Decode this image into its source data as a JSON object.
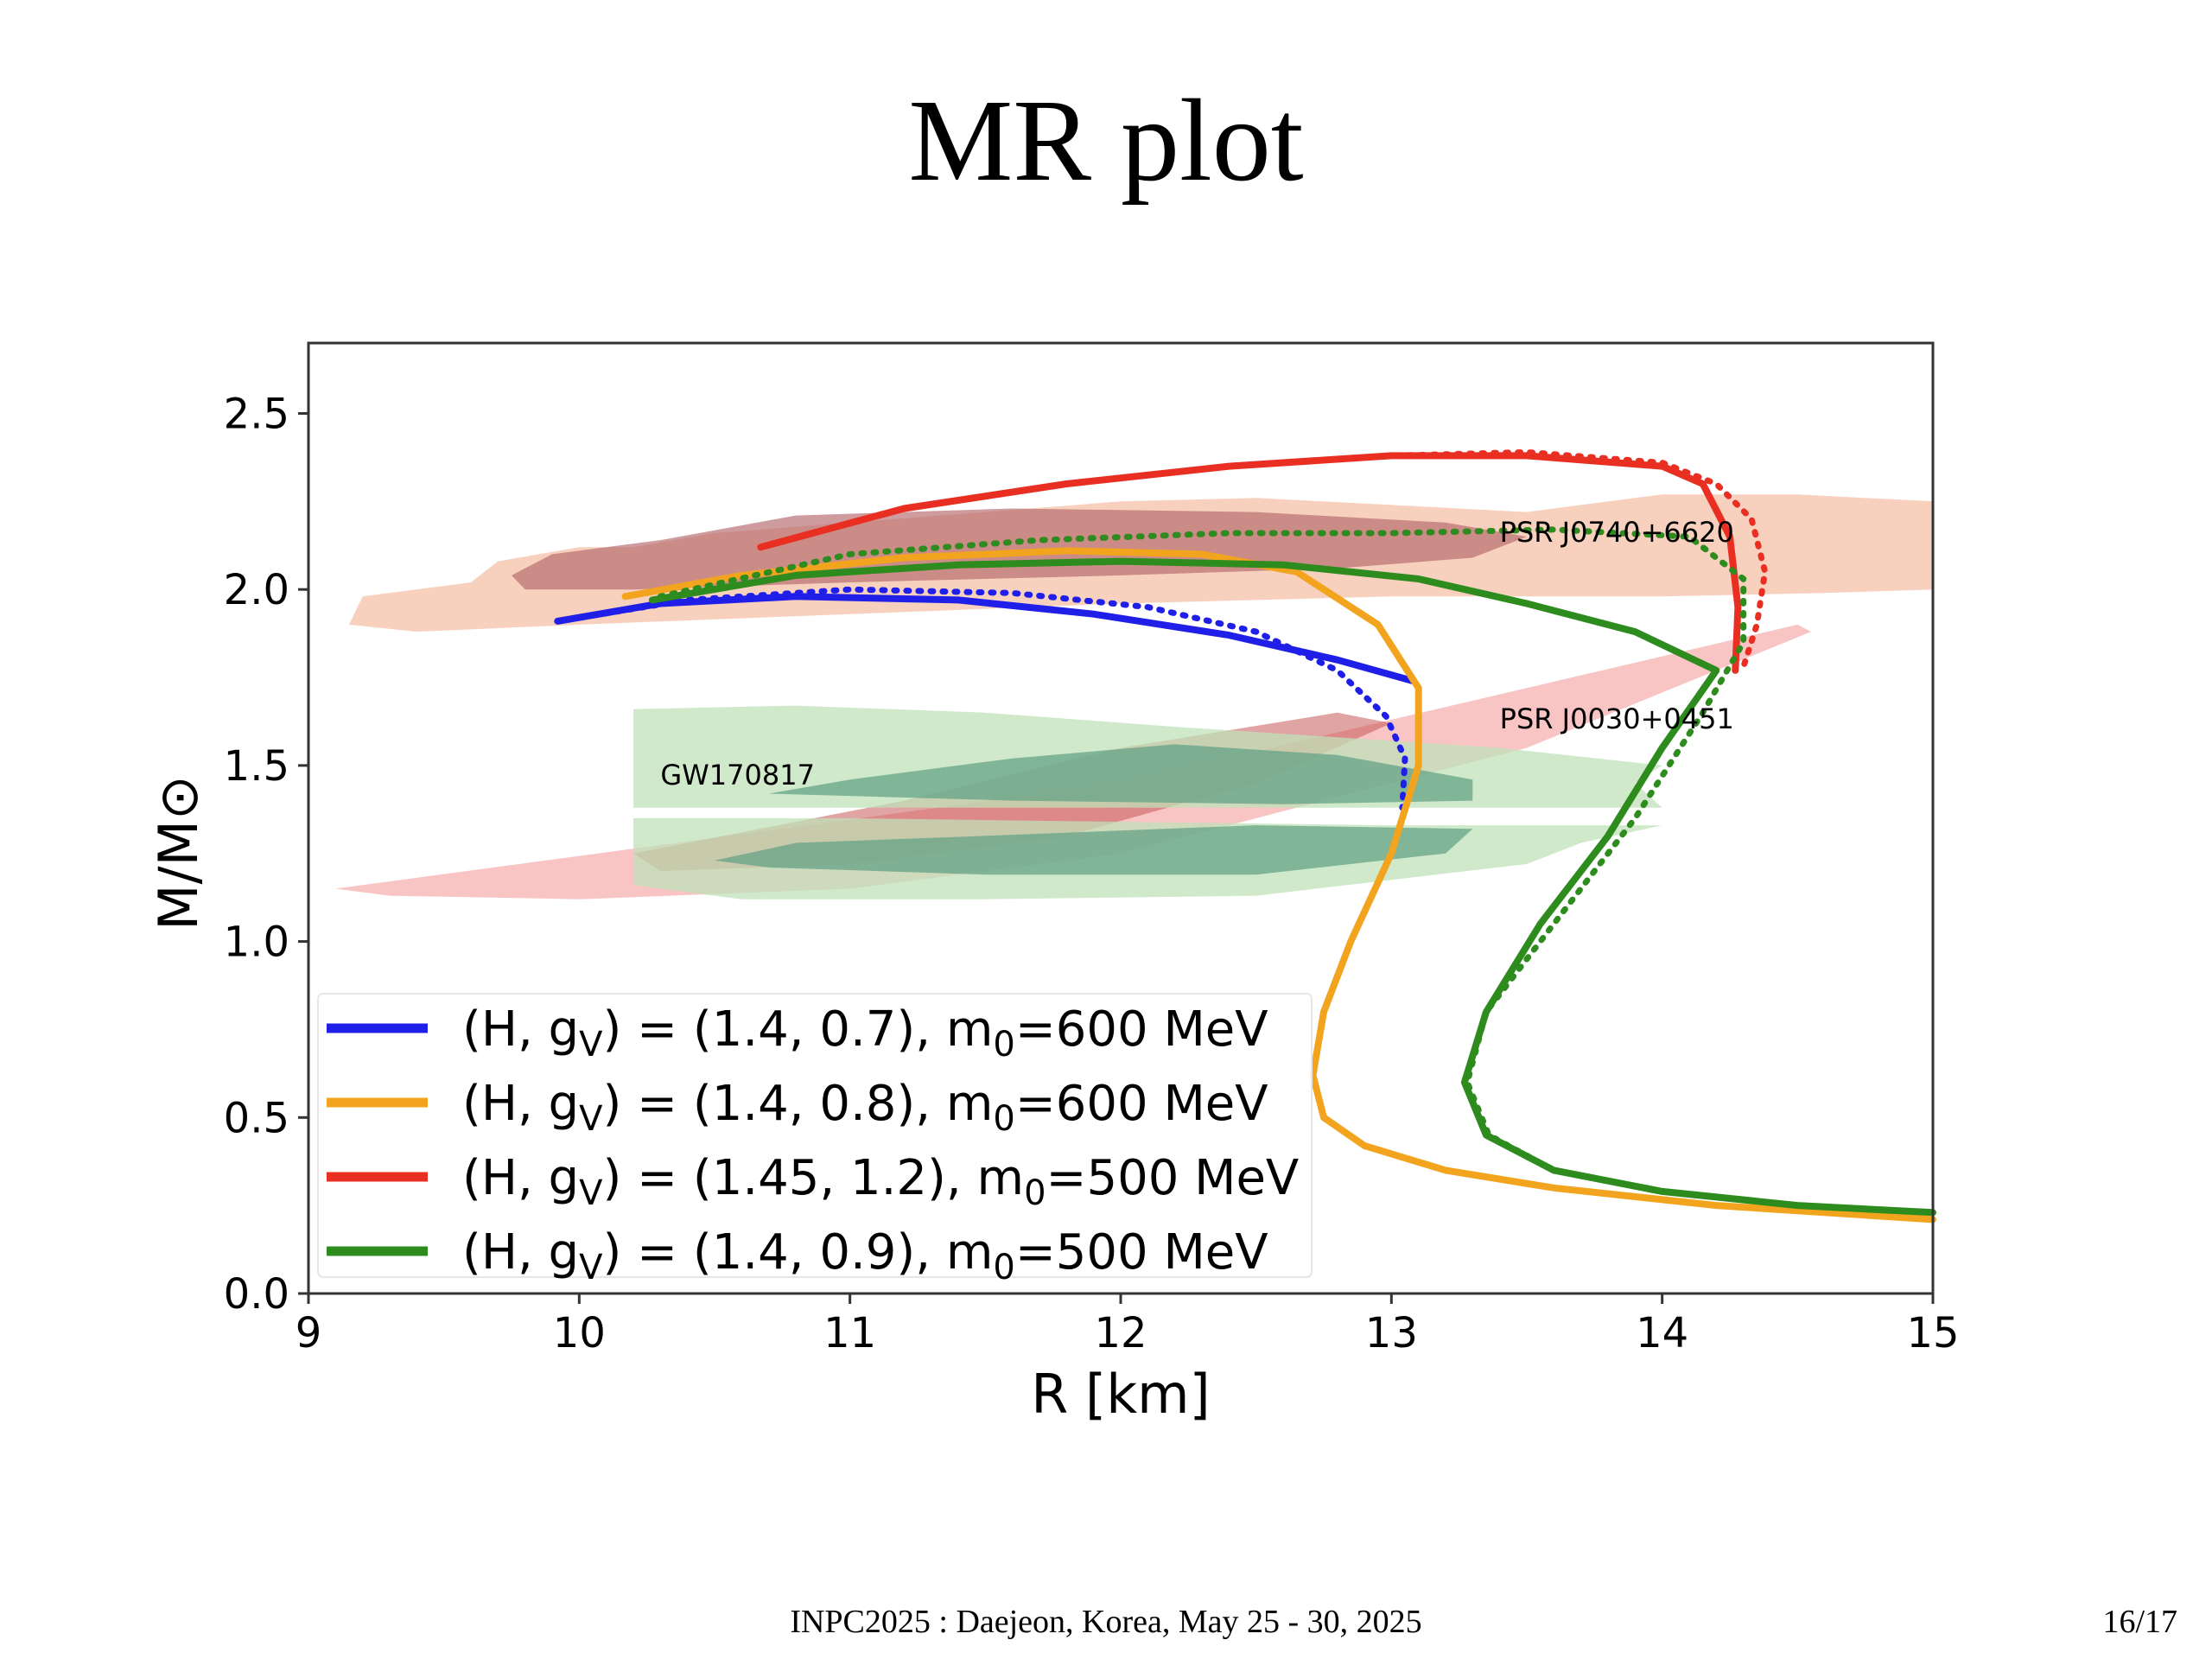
{
  "slide": {
    "title": "MR plot",
    "footer": "INPC2025 : Daejeon, Korea, May 25 - 30, 2025",
    "page": "16/17"
  },
  "chart_data": {
    "type": "line",
    "title": "",
    "xlabel": "R [km]",
    "ylabel": "M/M⊙",
    "xlim": [
      9,
      15
    ],
    "ylim": [
      0,
      2.7
    ],
    "xticks": [
      9,
      10,
      11,
      12,
      13,
      14,
      15
    ],
    "yticks": [
      0.0,
      0.5,
      1.0,
      1.5,
      2.0,
      2.5
    ],
    "xtick_labels": [
      "9",
      "10",
      "11",
      "12",
      "13",
      "14",
      "15"
    ],
    "ytick_labels": [
      "0.0",
      "0.5",
      "1.0",
      "1.5",
      "2.0",
      "2.5"
    ],
    "grid": false,
    "legend_position": "lower-left",
    "series": [
      {
        "name": "(H, g_V) = (1.4, 0.7), m_0=600 MeV",
        "legend": {
          "prefix": "(H, g",
          "sub1": "V",
          "mid": ") = (1.4, 0.7), m",
          "sub2": "0",
          "suffix": "=600 MeV"
        },
        "color": "#1f1fe8",
        "points": [
          [
            9.92,
            1.91
          ],
          [
            10.3,
            1.96
          ],
          [
            10.8,
            1.98
          ],
          [
            11.4,
            1.97
          ],
          [
            11.9,
            1.93
          ],
          [
            12.4,
            1.87
          ],
          [
            12.8,
            1.8
          ],
          [
            13.08,
            1.74
          ]
        ],
        "dotted": [
          [
            9.92,
            1.91
          ],
          [
            10.4,
            1.97
          ],
          [
            11.0,
            2.0
          ],
          [
            11.6,
            1.99
          ],
          [
            12.1,
            1.95
          ],
          [
            12.5,
            1.88
          ],
          [
            12.8,
            1.77
          ],
          [
            12.98,
            1.64
          ],
          [
            13.05,
            1.52
          ],
          [
            13.04,
            1.38
          ]
        ]
      },
      {
        "name": "(H, g_V) = (1.4, 0.8), m_0=600 MeV",
        "legend": {
          "prefix": "(H, g",
          "sub1": "V",
          "mid": ") = (1.4, 0.8), m",
          "sub2": "0",
          "suffix": "=600 MeV"
        },
        "color": "#f2a41e",
        "points": [
          [
            10.17,
            1.98
          ],
          [
            10.6,
            2.04
          ],
          [
            11.2,
            2.09
          ],
          [
            11.8,
            2.11
          ],
          [
            12.3,
            2.1
          ],
          [
            12.65,
            2.05
          ],
          [
            12.95,
            1.9
          ],
          [
            13.1,
            1.72
          ],
          [
            13.1,
            1.5
          ],
          [
            13.0,
            1.25
          ],
          [
            12.85,
            1.0
          ],
          [
            12.75,
            0.8
          ],
          [
            12.71,
            0.62
          ],
          [
            12.75,
            0.5
          ],
          [
            12.9,
            0.42
          ],
          [
            13.2,
            0.35
          ],
          [
            13.6,
            0.3
          ],
          [
            14.2,
            0.25
          ],
          [
            15.0,
            0.21
          ]
        ],
        "dotted": [
          [
            12.71,
            0.62
          ],
          [
            12.75,
            0.5
          ],
          [
            12.9,
            0.42
          ],
          [
            13.2,
            0.35
          ],
          [
            13.6,
            0.3
          ],
          [
            14.2,
            0.25
          ],
          [
            15.0,
            0.21
          ]
        ]
      },
      {
        "name": "(H, g_V) = (1.45, 1.2), m_0=500 MeV",
        "legend": {
          "prefix": "(H, g",
          "sub1": "V",
          "mid": ") = (1.45, 1.2), m",
          "sub2": "0",
          "suffix": "=500 MeV"
        },
        "color": "#e82f22",
        "points": [
          [
            10.67,
            2.12
          ],
          [
            11.2,
            2.23
          ],
          [
            11.8,
            2.3
          ],
          [
            12.4,
            2.35
          ],
          [
            13.0,
            2.38
          ],
          [
            13.5,
            2.38
          ],
          [
            14.0,
            2.35
          ],
          [
            14.15,
            2.3
          ],
          [
            14.25,
            2.15
          ],
          [
            14.28,
            1.95
          ],
          [
            14.27,
            1.77
          ]
        ],
        "dotted": [
          [
            11.2,
            2.23
          ],
          [
            11.8,
            2.3
          ],
          [
            12.4,
            2.35
          ],
          [
            13.0,
            2.38
          ],
          [
            13.5,
            2.39
          ],
          [
            14.0,
            2.36
          ],
          [
            14.2,
            2.3
          ],
          [
            14.33,
            2.2
          ],
          [
            14.38,
            2.05
          ],
          [
            14.35,
            1.9
          ],
          [
            14.3,
            1.78
          ]
        ]
      },
      {
        "name": "(H, g_V) = (1.4, 0.9), m_0=500 MeV",
        "legend": {
          "prefix": "(H, g",
          "sub1": "V",
          "mid": ") = (1.4, 0.9), m",
          "sub2": "0",
          "suffix": "=500 MeV"
        },
        "color": "#2e8b1e",
        "points": [
          [
            10.27,
            1.97
          ],
          [
            10.8,
            2.04
          ],
          [
            11.4,
            2.07
          ],
          [
            12.0,
            2.08
          ],
          [
            12.6,
            2.07
          ],
          [
            13.1,
            2.03
          ],
          [
            13.5,
            1.96
          ],
          [
            13.9,
            1.88
          ],
          [
            14.2,
            1.77
          ],
          [
            14.0,
            1.55
          ],
          [
            13.8,
            1.3
          ],
          [
            13.55,
            1.05
          ],
          [
            13.35,
            0.8
          ],
          [
            13.27,
            0.6
          ],
          [
            13.35,
            0.45
          ],
          [
            13.6,
            0.35
          ],
          [
            14.0,
            0.29
          ],
          [
            14.5,
            0.25
          ],
          [
            15.0,
            0.23
          ]
        ],
        "dotted": [
          [
            10.3,
            1.98
          ],
          [
            11.0,
            2.1
          ],
          [
            11.7,
            2.14
          ],
          [
            12.4,
            2.16
          ],
          [
            13.0,
            2.16
          ],
          [
            13.6,
            2.17
          ],
          [
            14.1,
            2.15
          ],
          [
            14.3,
            2.03
          ],
          [
            14.3,
            1.85
          ],
          [
            14.15,
            1.65
          ],
          [
            13.9,
            1.35
          ],
          [
            13.6,
            1.05
          ],
          [
            13.35,
            0.8
          ],
          [
            13.28,
            0.6
          ],
          [
            13.36,
            0.45
          ],
          [
            13.6,
            0.35
          ],
          [
            14.0,
            0.29
          ],
          [
            14.5,
            0.25
          ],
          [
            15.0,
            0.23
          ]
        ]
      }
    ],
    "annotations": [
      {
        "text": "PSR J0740+6620",
        "x": 13.4,
        "y": 2.16
      },
      {
        "text": "PSR J0030+0451",
        "x": 13.4,
        "y": 1.63
      },
      {
        "text": "GW170817",
        "x": 10.3,
        "y": 1.47
      }
    ],
    "regions": [
      {
        "name": "PSR J0740+6620",
        "color": "#f3bca3",
        "opacity": 0.7,
        "polygon": [
          [
            9.15,
            1.9
          ],
          [
            9.2,
            1.98
          ],
          [
            9.6,
            2.02
          ],
          [
            9.7,
            2.08
          ],
          [
            10.0,
            2.12
          ],
          [
            10.2,
            2.12
          ],
          [
            10.5,
            2.16
          ],
          [
            11.5,
            2.22
          ],
          [
            12.0,
            2.25
          ],
          [
            12.5,
            2.26
          ],
          [
            13.0,
            2.24
          ],
          [
            13.5,
            2.22
          ],
          [
            14.0,
            2.27
          ],
          [
            14.5,
            2.27
          ],
          [
            15.0,
            2.25
          ],
          [
            15.0,
            2.0
          ],
          [
            14.6,
            1.99
          ],
          [
            14.0,
            1.98
          ],
          [
            13.5,
            1.98
          ],
          [
            13.0,
            1.98
          ],
          [
            12.0,
            1.96
          ],
          [
            11.0,
            1.93
          ],
          [
            10.0,
            1.9
          ],
          [
            9.4,
            1.88
          ]
        ]
      },
      {
        "name": "PSR J0740+6620 (inner)",
        "color": "#b4666a",
        "opacity": 0.65,
        "polygon": [
          [
            9.75,
            2.04
          ],
          [
            9.9,
            2.1
          ],
          [
            10.3,
            2.14
          ],
          [
            10.8,
            2.21
          ],
          [
            11.6,
            2.23
          ],
          [
            12.5,
            2.22
          ],
          [
            13.2,
            2.19
          ],
          [
            13.5,
            2.15
          ],
          [
            13.3,
            2.09
          ],
          [
            12.8,
            2.06
          ],
          [
            12.0,
            2.04
          ],
          [
            11.0,
            2.02
          ],
          [
            10.2,
            2.0
          ],
          [
            9.8,
            2.0
          ]
        ]
      },
      {
        "name": "PSR J0030+0451",
        "color": "#f4a5a5",
        "opacity": 0.65,
        "polygon": [
          [
            9.1,
            1.15
          ],
          [
            12.0,
            1.45
          ],
          [
            14.5,
            1.9
          ],
          [
            14.55,
            1.88
          ],
          [
            13.5,
            1.55
          ],
          [
            12.0,
            1.25
          ],
          [
            11.0,
            1.15
          ],
          [
            10.0,
            1.12
          ],
          [
            9.3,
            1.13
          ]
        ]
      },
      {
        "name": "PSR J0030+0451 (inner)",
        "color": "#c9595a",
        "opacity": 0.55,
        "polygon": [
          [
            10.2,
            1.25
          ],
          [
            11.2,
            1.4
          ],
          [
            12.0,
            1.55
          ],
          [
            12.8,
            1.65
          ],
          [
            13.0,
            1.62
          ],
          [
            12.5,
            1.45
          ],
          [
            11.8,
            1.3
          ],
          [
            11.0,
            1.22
          ],
          [
            10.3,
            1.2
          ]
        ]
      },
      {
        "name": "GW170817 (upper)",
        "color": "#bfe2b8",
        "opacity": 0.75,
        "polygon": [
          [
            10.2,
            1.38
          ],
          [
            10.2,
            1.66
          ],
          [
            10.8,
            1.67
          ],
          [
            11.5,
            1.65
          ],
          [
            12.2,
            1.61
          ],
          [
            12.8,
            1.58
          ],
          [
            13.4,
            1.55
          ],
          [
            14.0,
            1.5
          ],
          [
            13.9,
            1.45
          ],
          [
            14.0,
            1.38
          ]
        ]
      },
      {
        "name": "GW170817 (lower)",
        "color": "#bfe2b8",
        "opacity": 0.75,
        "polygon": [
          [
            10.2,
            1.16
          ],
          [
            10.2,
            1.35
          ],
          [
            11.0,
            1.35
          ],
          [
            12.0,
            1.34
          ],
          [
            13.0,
            1.33
          ],
          [
            14.0,
            1.33
          ],
          [
            13.7,
            1.28
          ],
          [
            13.5,
            1.22
          ],
          [
            12.5,
            1.13
          ],
          [
            11.5,
            1.12
          ],
          [
            10.6,
            1.12
          ]
        ]
      },
      {
        "name": "GW170817 (inner upper)",
        "color": "#5e9e83",
        "opacity": 0.7,
        "polygon": [
          [
            10.7,
            1.42
          ],
          [
            11.0,
            1.46
          ],
          [
            11.6,
            1.52
          ],
          [
            12.2,
            1.56
          ],
          [
            12.8,
            1.53
          ],
          [
            13.3,
            1.46
          ],
          [
            13.3,
            1.4
          ],
          [
            12.6,
            1.39
          ],
          [
            11.6,
            1.4
          ]
        ]
      },
      {
        "name": "GW170817 (inner lower)",
        "color": "#5e9e83",
        "opacity": 0.7,
        "polygon": [
          [
            10.5,
            1.23
          ],
          [
            10.8,
            1.28
          ],
          [
            11.5,
            1.3
          ],
          [
            12.5,
            1.33
          ],
          [
            13.3,
            1.32
          ],
          [
            13.2,
            1.25
          ],
          [
            12.5,
            1.19
          ],
          [
            11.5,
            1.19
          ],
          [
            10.7,
            1.21
          ]
        ]
      }
    ]
  }
}
